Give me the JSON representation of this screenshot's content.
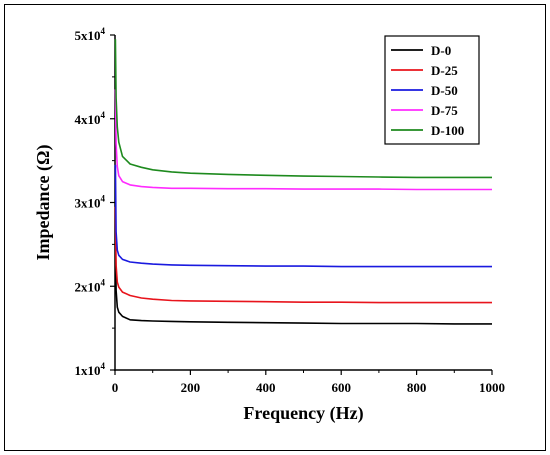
{
  "chart_data": {
    "type": "line",
    "xlabel": "Frequency (Hz)",
    "ylabel": "Impedance (Ω)",
    "xlim": [
      0,
      1000
    ],
    "ylim": [
      10000,
      50000
    ],
    "x_ticks": [
      0,
      200,
      400,
      600,
      800,
      1000
    ],
    "y_ticks": [
      {
        "value": 10000,
        "mantissa": "1x10",
        "exp": "4"
      },
      {
        "value": 20000,
        "mantissa": "2x10",
        "exp": "4"
      },
      {
        "value": 30000,
        "mantissa": "3x10",
        "exp": "4"
      },
      {
        "value": 40000,
        "mantissa": "4x10",
        "exp": "4"
      },
      {
        "value": 50000,
        "mantissa": "5x10",
        "exp": "4"
      }
    ],
    "grid": false,
    "legend_position": "top-right",
    "x": [
      1,
      3,
      6,
      10,
      20,
      40,
      70,
      100,
      150,
      200,
      300,
      400,
      500,
      600,
      700,
      800,
      900,
      1000
    ],
    "series": [
      {
        "name": "D-0",
        "color": "#000000",
        "values": [
          26500,
          19500,
          17500,
          16900,
          16400,
          16000,
          15900,
          15850,
          15800,
          15750,
          15700,
          15650,
          15600,
          15550,
          15550,
          15550,
          15500,
          15500
        ]
      },
      {
        "name": "D-25",
        "color": "#e8141c",
        "values": [
          29500,
          22500,
          20500,
          19900,
          19300,
          18900,
          18600,
          18450,
          18300,
          18250,
          18200,
          18150,
          18100,
          18100,
          18050,
          18050,
          18050,
          18050
        ]
      },
      {
        "name": "D-50",
        "color": "#1a1adf",
        "values": [
          34500,
          26500,
          24300,
          23700,
          23200,
          22900,
          22750,
          22650,
          22550,
          22500,
          22450,
          22400,
          22400,
          22350,
          22350,
          22350,
          22350,
          22350
        ]
      },
      {
        "name": "D-75",
        "color": "#ff2bff",
        "values": [
          43500,
          37000,
          34300,
          33200,
          32500,
          32100,
          31900,
          31800,
          31700,
          31700,
          31650,
          31650,
          31600,
          31600,
          31600,
          31550,
          31550,
          31550
        ]
      },
      {
        "name": "D-100",
        "color": "#1e8a1e",
        "values": [
          49500,
          42500,
          39000,
          37200,
          35500,
          34600,
          34200,
          33900,
          33650,
          33500,
          33350,
          33250,
          33150,
          33100,
          33050,
          33000,
          33000,
          33000
        ]
      }
    ]
  }
}
